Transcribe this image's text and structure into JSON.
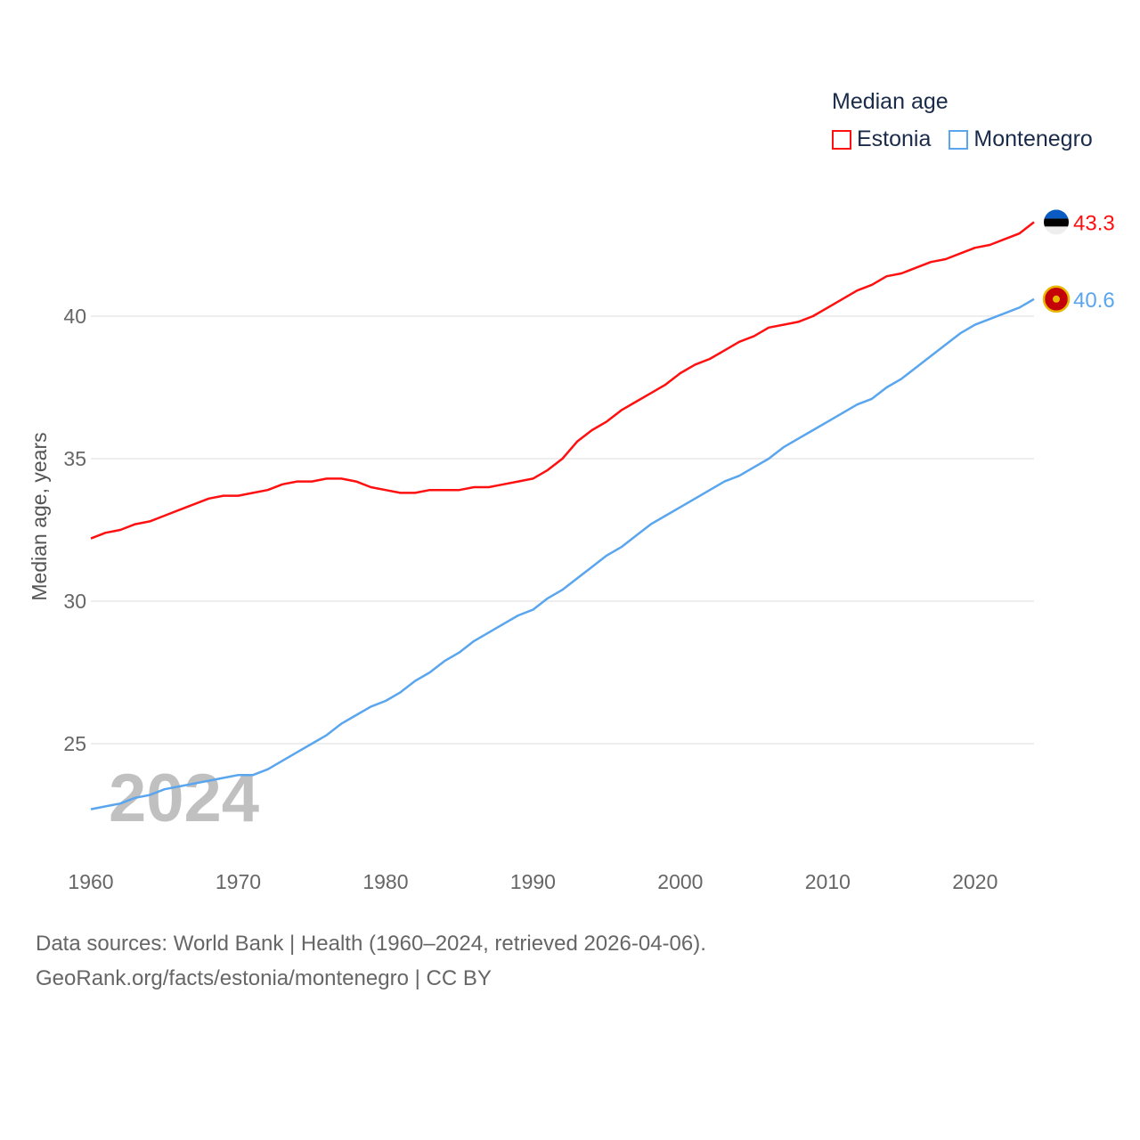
{
  "chart_data": {
    "type": "line",
    "title": "Median age",
    "xlabel": "",
    "ylabel": "Median age, years",
    "xlim": [
      1960,
      2024
    ],
    "ylim": [
      22,
      44
    ],
    "xticks": [
      1960,
      1970,
      1980,
      1990,
      2000,
      2010,
      2020
    ],
    "yticks": [
      25,
      30,
      35,
      40
    ],
    "grid": true,
    "legend_position": "top-right",
    "year_watermark": "2024",
    "x": [
      1960,
      1961,
      1962,
      1963,
      1964,
      1965,
      1966,
      1967,
      1968,
      1969,
      1970,
      1971,
      1972,
      1973,
      1974,
      1975,
      1976,
      1977,
      1978,
      1979,
      1980,
      1981,
      1982,
      1983,
      1984,
      1985,
      1986,
      1987,
      1988,
      1989,
      1990,
      1991,
      1992,
      1993,
      1994,
      1995,
      1996,
      1997,
      1998,
      1999,
      2000,
      2001,
      2002,
      2003,
      2004,
      2005,
      2006,
      2007,
      2008,
      2009,
      2010,
      2011,
      2012,
      2013,
      2014,
      2015,
      2016,
      2017,
      2018,
      2019,
      2020,
      2021,
      2022,
      2023,
      2024
    ],
    "series": [
      {
        "name": "Estonia",
        "color": "#ff1010",
        "end_label": "43.3",
        "values": [
          32.2,
          32.4,
          32.5,
          32.7,
          32.8,
          33.0,
          33.2,
          33.4,
          33.6,
          33.7,
          33.7,
          33.8,
          33.9,
          34.1,
          34.2,
          34.2,
          34.3,
          34.3,
          34.2,
          34.0,
          33.9,
          33.8,
          33.8,
          33.9,
          33.9,
          33.9,
          34.0,
          34.0,
          34.1,
          34.2,
          34.3,
          34.6,
          35.0,
          35.6,
          36.0,
          36.3,
          36.7,
          37.0,
          37.3,
          37.6,
          38.0,
          38.3,
          38.5,
          38.8,
          39.1,
          39.3,
          39.6,
          39.7,
          39.8,
          40.0,
          40.3,
          40.6,
          40.9,
          41.1,
          41.4,
          41.5,
          41.7,
          41.9,
          42.0,
          42.2,
          42.4,
          42.5,
          42.7,
          42.9,
          43.3
        ]
      },
      {
        "name": "Montenegro",
        "color": "#5aa6ee",
        "end_label": "40.6",
        "values": [
          22.7,
          22.8,
          22.9,
          23.1,
          23.2,
          23.4,
          23.5,
          23.6,
          23.7,
          23.8,
          23.9,
          23.9,
          24.1,
          24.4,
          24.7,
          25.0,
          25.3,
          25.7,
          26.0,
          26.3,
          26.5,
          26.8,
          27.2,
          27.5,
          27.9,
          28.2,
          28.6,
          28.9,
          29.2,
          29.5,
          29.7,
          30.1,
          30.4,
          30.8,
          31.2,
          31.6,
          31.9,
          32.3,
          32.7,
          33.0,
          33.3,
          33.6,
          33.9,
          34.2,
          34.4,
          34.7,
          35.0,
          35.4,
          35.7,
          36.0,
          36.3,
          36.6,
          36.9,
          37.1,
          37.5,
          37.8,
          38.2,
          38.6,
          39.0,
          39.4,
          39.7,
          39.9,
          40.1,
          40.3,
          40.6
        ]
      }
    ]
  },
  "footer": {
    "line1": "Data sources: World Bank | Health (1960–2024, retrieved 2026-04-06).",
    "line2": "GeoRank.org/facts/estonia/montenegro | CC BY"
  }
}
